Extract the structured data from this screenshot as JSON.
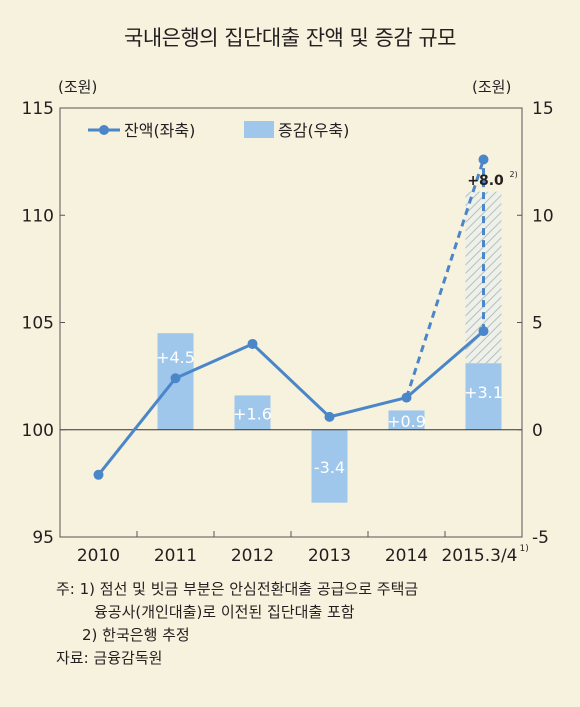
{
  "title": "국내은행의 집단대출 잔액 및 증감 규모",
  "chart_data": {
    "type": "bar+line",
    "categories": [
      "2010",
      "2011",
      "2012",
      "2013",
      "2014",
      "2015.3/4"
    ],
    "category_superscript": {
      "5": "1)"
    },
    "left_axis": {
      "unit": "(조원)",
      "ylim": [
        95,
        115
      ],
      "ticks": [
        95,
        100,
        105,
        110,
        115
      ]
    },
    "right_axis": {
      "unit": "(조원)",
      "ylim": [
        -5,
        15
      ],
      "ticks": [
        -5,
        0,
        5,
        10,
        15
      ]
    },
    "series": [
      {
        "name": "잔액(좌축)",
        "axis": "left",
        "kind": "line",
        "values": [
          97.9,
          102.4,
          104.0,
          100.6,
          101.5,
          104.6
        ]
      },
      {
        "name": "증감(우축)",
        "axis": "right",
        "kind": "bar",
        "values": [
          null,
          4.5,
          1.6,
          -3.4,
          0.9,
          3.1
        ],
        "labels": [
          null,
          "+4.5",
          "+1.6",
          "-3.4",
          "+0.9",
          "+3.1"
        ]
      }
    ],
    "estimate": {
      "line_point": {
        "category": "2015.3/4",
        "value": 112.6
      },
      "bar_total": 11.1,
      "label": "+8.0",
      "label_superscript": "2)"
    },
    "grid": false,
    "legend_position": "top-left",
    "colors": {
      "line": "#4a86c8",
      "bar": "#9fc7ec",
      "hatch_bg": "#eef0ea",
      "hatch_line": "#b9bfb8",
      "frame": "#555555"
    }
  },
  "notes": [
    {
      "prefix": "주: ",
      "text": "1) 점선 및 빗금 부분은 안심전환대출 공급으로 주택금"
    },
    {
      "prefix": "",
      "text": "융공사(개인대출)로 이전된 집단대출 포함"
    },
    {
      "prefix": "",
      "text": "2) 한국은행 추정"
    },
    {
      "prefix": "",
      "text": "자료: 금융감독원"
    }
  ]
}
